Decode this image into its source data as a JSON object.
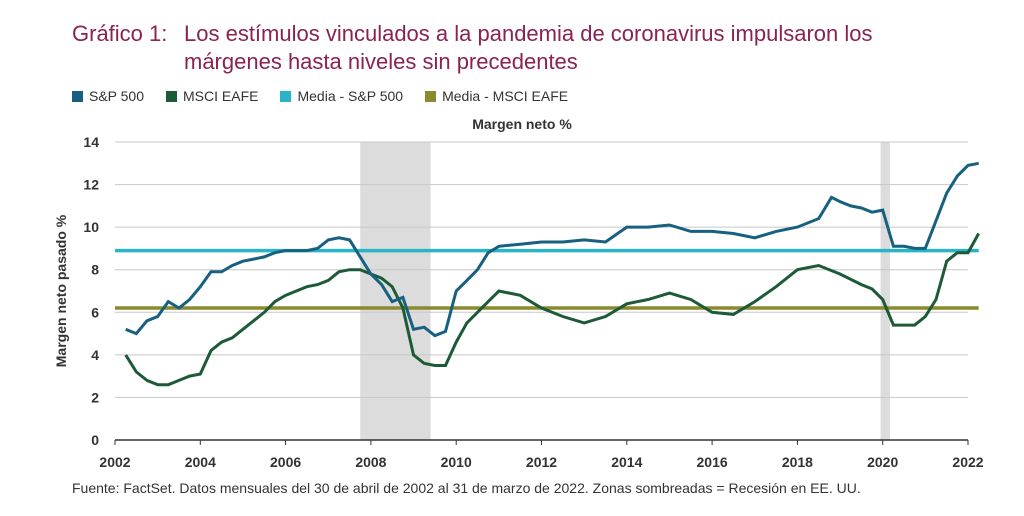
{
  "title": {
    "number": "Gráfico 1:",
    "text": "Los estímulos vinculados a la pandemia de coronavirus impulsaron los márgenes hasta niveles sin precedentes"
  },
  "legend": [
    {
      "label": "S&P 500",
      "color": "#17607f"
    },
    {
      "label": "MSCI EAFE",
      "color": "#1d5a37"
    },
    {
      "label": "Media - S&P 500",
      "color": "#2ab4c8"
    },
    {
      "label": "Media - MSCI EAFE",
      "color": "#8c8a2e"
    }
  ],
  "source": "Fuente: FactSet. Datos mensuales del 30 de abril de 2002 al 31 de marzo de 2022. Zonas sombreadas = Recesión en EE. UU.",
  "chart_data": {
    "type": "line",
    "title": "Margen neto %",
    "xlabel": "",
    "ylabel": "Margen neto pasado %",
    "xlim": [
      2002,
      2022
    ],
    "ylim": [
      0,
      14
    ],
    "yticks": [
      0,
      2,
      4,
      6,
      8,
      10,
      12,
      14
    ],
    "xticks": [
      2002,
      2004,
      2006,
      2008,
      2010,
      2012,
      2014,
      2016,
      2018,
      2020,
      2022
    ],
    "grid": true,
    "recessions": [
      [
        2007.75,
        2009.4
      ],
      [
        2019.95,
        2020.17
      ]
    ],
    "series": [
      {
        "name": "S&P 500",
        "color": "#17607f",
        "x": [
          2002.25,
          2002.5,
          2002.75,
          2003.0,
          2003.25,
          2003.5,
          2003.75,
          2004.0,
          2004.25,
          2004.5,
          2004.75,
          2005.0,
          2005.25,
          2005.5,
          2005.75,
          2006.0,
          2006.25,
          2006.5,
          2006.75,
          2007.0,
          2007.25,
          2007.5,
          2007.75,
          2008.0,
          2008.25,
          2008.5,
          2008.75,
          2009.0,
          2009.25,
          2009.5,
          2009.75,
          2010.0,
          2010.25,
          2010.5,
          2010.75,
          2011.0,
          2011.5,
          2012.0,
          2012.5,
          2013.0,
          2013.5,
          2014.0,
          2014.5,
          2015.0,
          2015.5,
          2016.0,
          2016.5,
          2017.0,
          2017.5,
          2018.0,
          2018.5,
          2018.8,
          2019.0,
          2019.25,
          2019.5,
          2019.75,
          2020.0,
          2020.25,
          2020.5,
          2020.75,
          2021.0,
          2021.25,
          2021.5,
          2021.75,
          2022.0,
          2022.25
        ],
        "values": [
          5.2,
          5.0,
          5.6,
          5.8,
          6.5,
          6.2,
          6.6,
          7.2,
          7.9,
          7.9,
          8.2,
          8.4,
          8.5,
          8.6,
          8.8,
          8.9,
          8.9,
          8.9,
          9.0,
          9.4,
          9.5,
          9.4,
          8.6,
          7.8,
          7.3,
          6.5,
          6.7,
          5.2,
          5.3,
          4.9,
          5.1,
          7.0,
          7.5,
          8.0,
          8.8,
          9.1,
          9.2,
          9.3,
          9.3,
          9.4,
          9.3,
          10.0,
          10.0,
          10.1,
          9.8,
          9.8,
          9.7,
          9.5,
          9.8,
          10.0,
          10.4,
          11.4,
          11.2,
          11.0,
          10.9,
          10.7,
          10.8,
          9.1,
          9.1,
          9.0,
          9.0,
          10.3,
          11.6,
          12.4,
          12.9,
          13.0
        ]
      },
      {
        "name": "MSCI EAFE",
        "color": "#1d5a37",
        "x": [
          2002.25,
          2002.5,
          2002.75,
          2003.0,
          2003.25,
          2003.5,
          2003.75,
          2004.0,
          2004.25,
          2004.5,
          2004.75,
          2005.0,
          2005.25,
          2005.5,
          2005.75,
          2006.0,
          2006.25,
          2006.5,
          2006.75,
          2007.0,
          2007.25,
          2007.5,
          2007.75,
          2008.0,
          2008.25,
          2008.5,
          2008.75,
          2009.0,
          2009.25,
          2009.5,
          2009.75,
          2010.0,
          2010.25,
          2010.5,
          2010.75,
          2011.0,
          2011.5,
          2012.0,
          2012.5,
          2013.0,
          2013.5,
          2014.0,
          2014.5,
          2015.0,
          2015.5,
          2016.0,
          2016.5,
          2017.0,
          2017.5,
          2018.0,
          2018.5,
          2019.0,
          2019.5,
          2019.75,
          2020.0,
          2020.25,
          2020.5,
          2020.75,
          2021.0,
          2021.25,
          2021.5,
          2021.75,
          2022.0,
          2022.25
        ],
        "values": [
          4.0,
          3.2,
          2.8,
          2.6,
          2.6,
          2.8,
          3.0,
          3.1,
          4.2,
          4.6,
          4.8,
          5.2,
          5.6,
          6.0,
          6.5,
          6.8,
          7.0,
          7.2,
          7.3,
          7.5,
          7.9,
          8.0,
          8.0,
          7.8,
          7.6,
          7.2,
          6.2,
          4.0,
          3.6,
          3.5,
          3.5,
          4.6,
          5.5,
          6.0,
          6.5,
          7.0,
          6.8,
          6.2,
          5.8,
          5.5,
          5.8,
          6.4,
          6.6,
          6.9,
          6.6,
          6.0,
          5.9,
          6.5,
          7.2,
          8.0,
          8.2,
          7.8,
          7.3,
          7.1,
          6.6,
          5.4,
          5.4,
          5.4,
          5.8,
          6.6,
          8.4,
          8.8,
          8.8,
          9.7
        ]
      },
      {
        "name": "Media - S&P 500",
        "color": "#2ab4c8",
        "x": [
          2002,
          2022.25
        ],
        "values": [
          8.9,
          8.9
        ]
      },
      {
        "name": "Media - MSCI EAFE",
        "color": "#8c8a2e",
        "x": [
          2002,
          2022.25
        ],
        "values": [
          6.2,
          6.2
        ]
      }
    ]
  }
}
